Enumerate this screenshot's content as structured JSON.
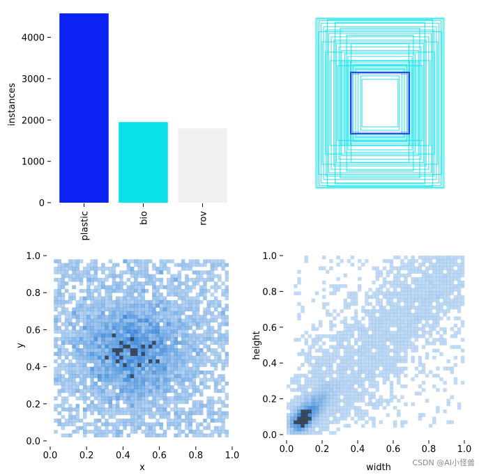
{
  "watermark": "CSDN @AI小怪兽",
  "colors": {
    "blue": "#0b22f5",
    "cyan": "#0ae0ea",
    "gray": "#f0f0f0",
    "hist": "#1f77d4",
    "hist_dark": "#1a2a44"
  },
  "chart_data": [
    {
      "id": "class_counts",
      "type": "bar",
      "title": "",
      "xlabel": "",
      "ylabel": "instances",
      "categories": [
        "plastic",
        "bio",
        "rov"
      ],
      "values": [
        4580,
        1950,
        1800
      ],
      "bar_colors": [
        "#0b22f5",
        "#0ae0ea",
        "#f0f0f0"
      ],
      "ylim": [
        0,
        4600
      ],
      "yticks": [
        0,
        1000,
        2000,
        3000,
        4000
      ],
      "grid": false
    },
    {
      "id": "box_overlay",
      "type": "other",
      "description_note": "",
      "boxes_width_height": [
        [
          0.28,
          0.28
        ],
        [
          0.3,
          0.32
        ],
        [
          0.34,
          0.36
        ],
        [
          0.38,
          0.4
        ],
        [
          0.42,
          0.45
        ],
        [
          0.46,
          0.5
        ],
        [
          0.5,
          0.55
        ],
        [
          0.55,
          0.58
        ],
        [
          0.6,
          0.62
        ],
        [
          0.64,
          0.66
        ],
        [
          0.68,
          0.7
        ],
        [
          0.72,
          0.74
        ],
        [
          0.76,
          0.78
        ],
        [
          0.8,
          0.82
        ],
        [
          0.84,
          0.86
        ],
        [
          0.88,
          0.9
        ],
        [
          0.92,
          0.94
        ],
        [
          0.95,
          0.97
        ],
        [
          0.98,
          0.99
        ],
        [
          1.0,
          1.0
        ],
        [
          0.7,
          0.95
        ],
        [
          0.9,
          0.72
        ],
        [
          0.62,
          0.88
        ],
        [
          0.85,
          0.6
        ],
        [
          0.52,
          0.8
        ],
        [
          0.78,
          0.5
        ],
        [
          0.45,
          0.7
        ],
        [
          0.66,
          0.44
        ],
        [
          0.96,
          0.84
        ],
        [
          0.82,
          0.98
        ]
      ],
      "highlight_box": [
        0.52,
        0.52
      ]
    },
    {
      "id": "xy_hist",
      "type": "heatmap",
      "xlabel": "x",
      "ylabel": "y",
      "xlim": [
        0,
        1
      ],
      "ylim": [
        0,
        1
      ],
      "xticks": [
        "0.0",
        "0.2",
        "0.4",
        "0.6",
        "0.8",
        "1.0"
      ],
      "yticks": [
        "0.0",
        "0.2",
        "0.4",
        "0.6",
        "0.8",
        "1.0"
      ],
      "bins": 50,
      "distribution": "dense near center (0.45, 0.48), spread across 0.02–0.98"
    },
    {
      "id": "wh_hist",
      "type": "heatmap",
      "xlabel": "width",
      "ylabel": "height",
      "xlim": [
        0,
        1
      ],
      "ylim": [
        0,
        1
      ],
      "xticks": [
        "0.0",
        "0.2",
        "0.4",
        "0.6",
        "0.8",
        "1.0"
      ],
      "yticks": [
        "0.0",
        "0.2",
        "0.4",
        "0.6",
        "0.8",
        "1.0"
      ],
      "bins": 50,
      "distribution": "dense near (0.12, 0.12), correlated diagonal spread to (1.0, 1.0)"
    }
  ]
}
